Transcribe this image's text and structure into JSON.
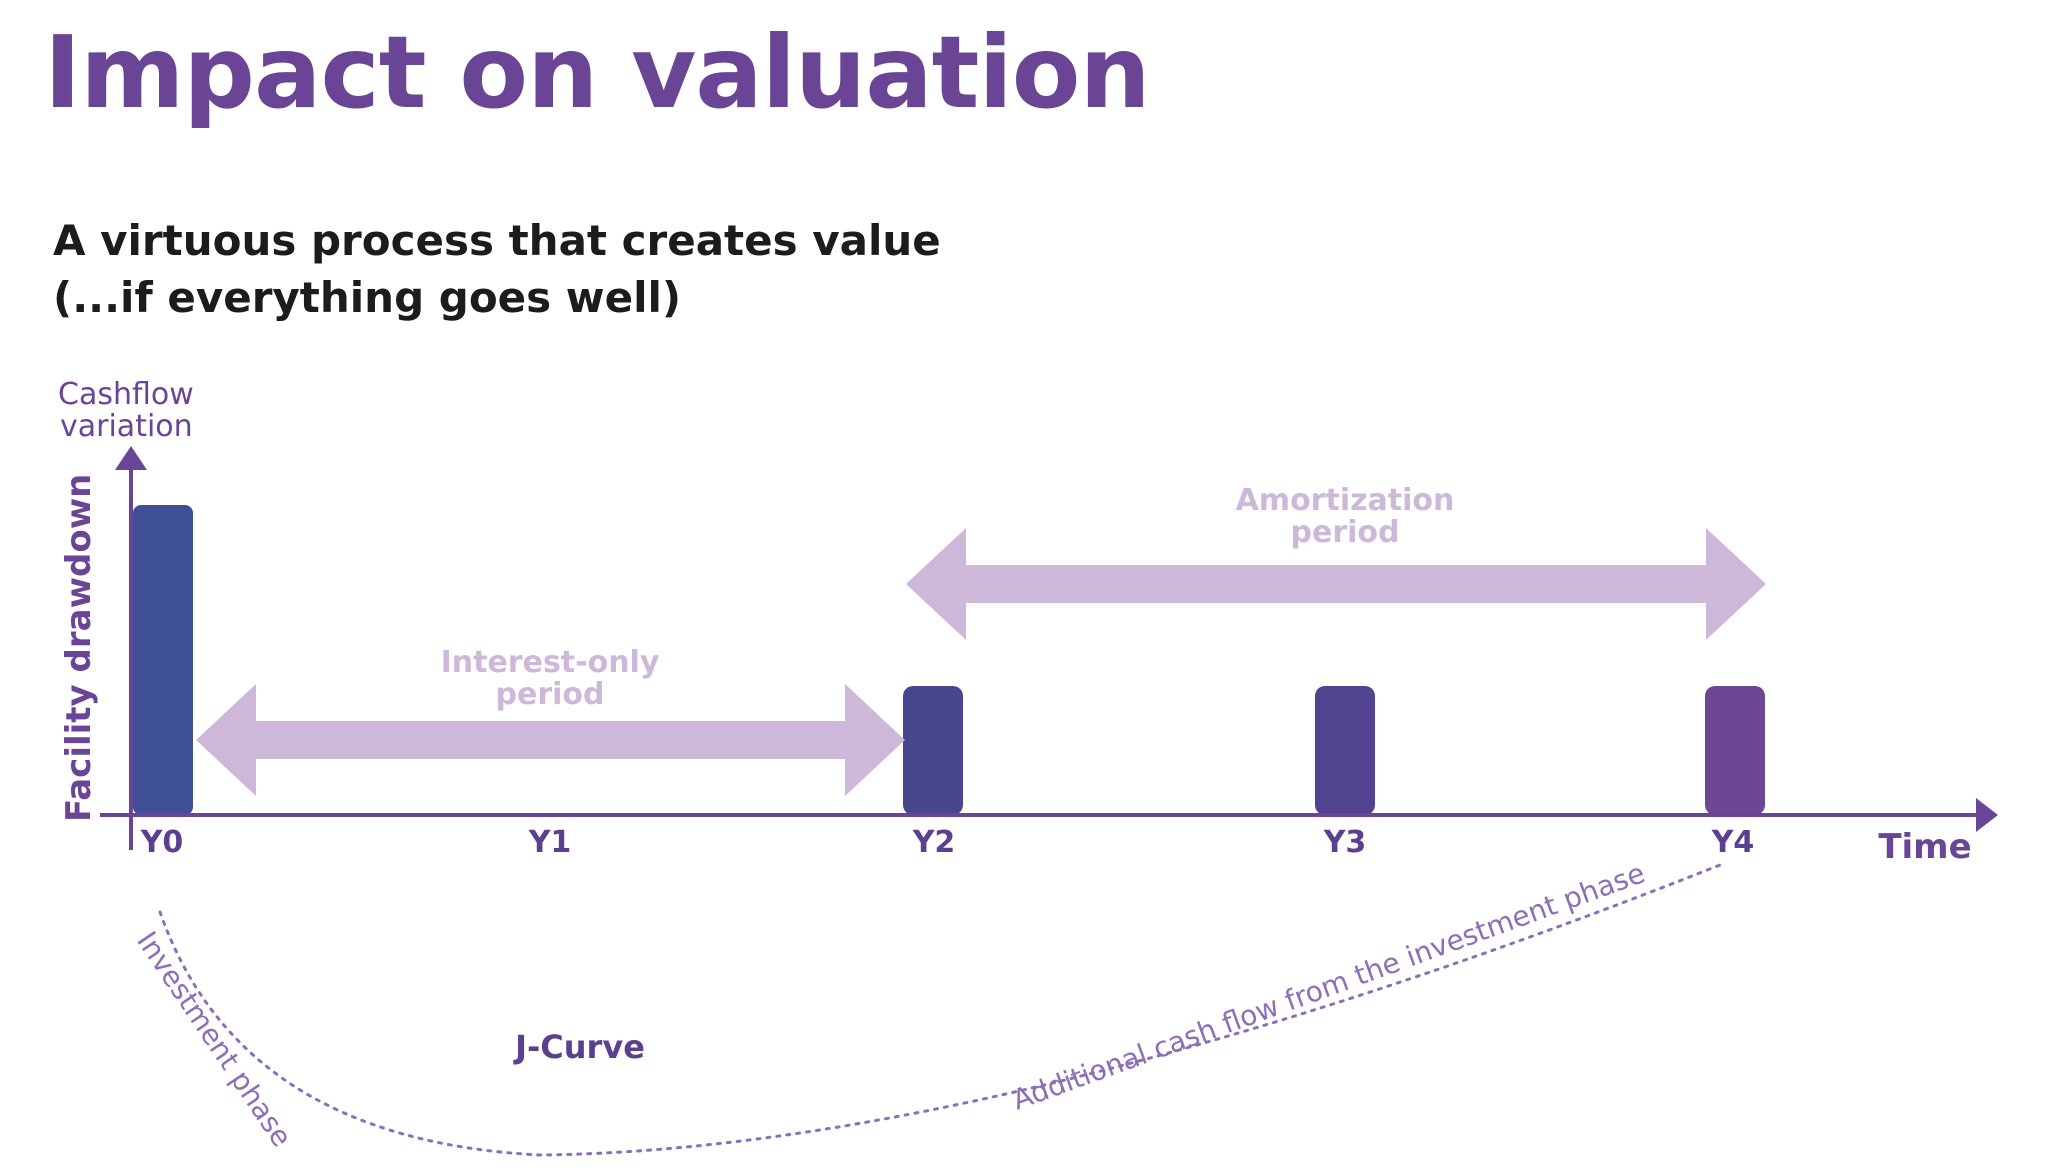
{
  "title": "Impact on valuation",
  "subtitle": {
    "line1": "A virtuous process that creates value",
    "line2": "(...if everything goes well)"
  },
  "axes": {
    "y_label_line1": "Cashflow",
    "y_label_line2": "variation",
    "y_side_label": "Facility drawdown",
    "x_label": "Time"
  },
  "ticks": [
    "Y0",
    "Y1",
    "Y2",
    "Y3",
    "Y4"
  ],
  "periods": {
    "interest_only": {
      "line1": "Interest-only",
      "line2": "period"
    },
    "amortization": {
      "line1": "Amortization",
      "line2": "period"
    }
  },
  "curve": {
    "name": "J-Curve",
    "investment_phase": "Investment phase",
    "additional_cash_flow": "Additional cash flow from the investment phase"
  },
  "colors": {
    "title": "#6a4596",
    "axis": "#6a4596",
    "arrow_fill": "#cdb8da",
    "bar_y0": "#3e4f96",
    "bar_y2": "#474790",
    "bar_y3": "#524390",
    "bar_y4": "#6c4894"
  }
}
